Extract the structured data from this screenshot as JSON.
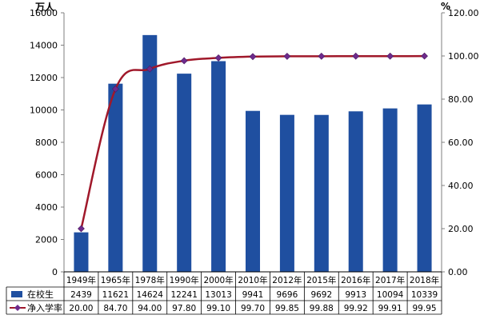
{
  "chart_data": {
    "type": "bar",
    "categories": [
      "1949年",
      "1965年",
      "1978年",
      "1990年",
      "2000年",
      "2010年",
      "2012年",
      "2015年",
      "2016年",
      "2017年",
      "2018年"
    ],
    "left_axis": {
      "unit": "万人",
      "min": 0,
      "max": 16000,
      "step": 2000,
      "ticks": [
        "0",
        "2000",
        "4000",
        "6000",
        "8000",
        "10000",
        "12000",
        "14000",
        "16000"
      ]
    },
    "right_axis": {
      "unit": "%",
      "min": 0,
      "max": 120,
      "step": 20,
      "ticks": [
        "0.00",
        "20.00",
        "40.00",
        "60.00",
        "80.00",
        "100.00",
        "120.00"
      ]
    },
    "series": [
      {
        "name": "在校生",
        "type": "bar",
        "axis": "left",
        "color": "#1f4fa0",
        "values": [
          2439,
          11621,
          14624,
          12241,
          13013,
          9941,
          9696,
          9692,
          9913,
          10094,
          10339
        ],
        "labels": [
          "2439",
          "11621",
          "14624",
          "12241",
          "13013",
          "9941",
          "9696",
          "9692",
          "9913",
          "10094",
          "10339"
        ]
      },
      {
        "name": "净入学率",
        "type": "line",
        "axis": "right",
        "color": "#a0182a",
        "marker_color": "#6e2a8c",
        "values": [
          20.0,
          84.7,
          94.0,
          97.8,
          99.1,
          99.7,
          99.85,
          99.88,
          99.92,
          99.91,
          99.95
        ],
        "labels": [
          "20.00",
          "84.70",
          "94.00",
          "97.80",
          "99.10",
          "99.70",
          "99.85",
          "99.88",
          "99.92",
          "99.91",
          "99.95"
        ]
      }
    ],
    "grid": false,
    "legend": "data-table-bottom"
  }
}
